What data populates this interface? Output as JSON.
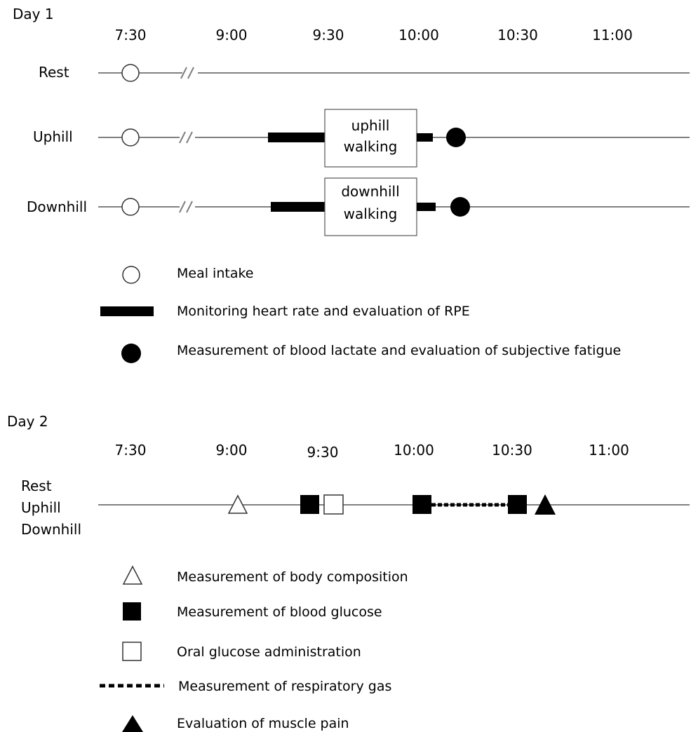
{
  "day1": {
    "title": "Day 1",
    "times": [
      "7:30",
      "9:00",
      "9:30",
      "10:00",
      "10:30",
      "11:00"
    ],
    "rows": {
      "rest": "Rest",
      "uphill": "Uphill",
      "downhill": "Downhill"
    },
    "boxes": {
      "uphill": [
        "uphill",
        "walking"
      ],
      "downhill": [
        "downhill",
        "walking"
      ]
    },
    "legend": {
      "meal": "Meal intake",
      "heart_rate": "Monitoring heart rate and evaluation of RPE",
      "lactate": "Measurement of blood lactate and evaluation of subjective fatigue"
    }
  },
  "day2": {
    "title": "Day 2",
    "times": [
      "7:30",
      "9:00",
      "9:30",
      "10:00",
      "10:30",
      "11:00"
    ],
    "row_labels": [
      "Rest",
      "Uphill",
      "Downhill"
    ],
    "legend": {
      "body_composition": "Measurement of  body composition",
      "blood_glucose": "Measurement of blood  glucose",
      "oral_glucose": "Oral glucose administration",
      "respiratory_gas": "Measurement of respiratory gas",
      "muscle_pain": "Evaluation of  muscle pain"
    }
  },
  "colors": {
    "line": "#808080",
    "ink": "#000000",
    "paper": "#ffffff"
  },
  "icons": {
    "meal": "open-circle-icon",
    "heart_rate": "thick-bar-icon",
    "lactate": "filled-circle-icon",
    "body_composition": "open-triangle-icon",
    "blood_glucose": "filled-square-icon",
    "oral_glucose": "open-square-icon",
    "respiratory_gas": "dotted-line-icon",
    "muscle_pain": "filled-triangle-icon"
  }
}
